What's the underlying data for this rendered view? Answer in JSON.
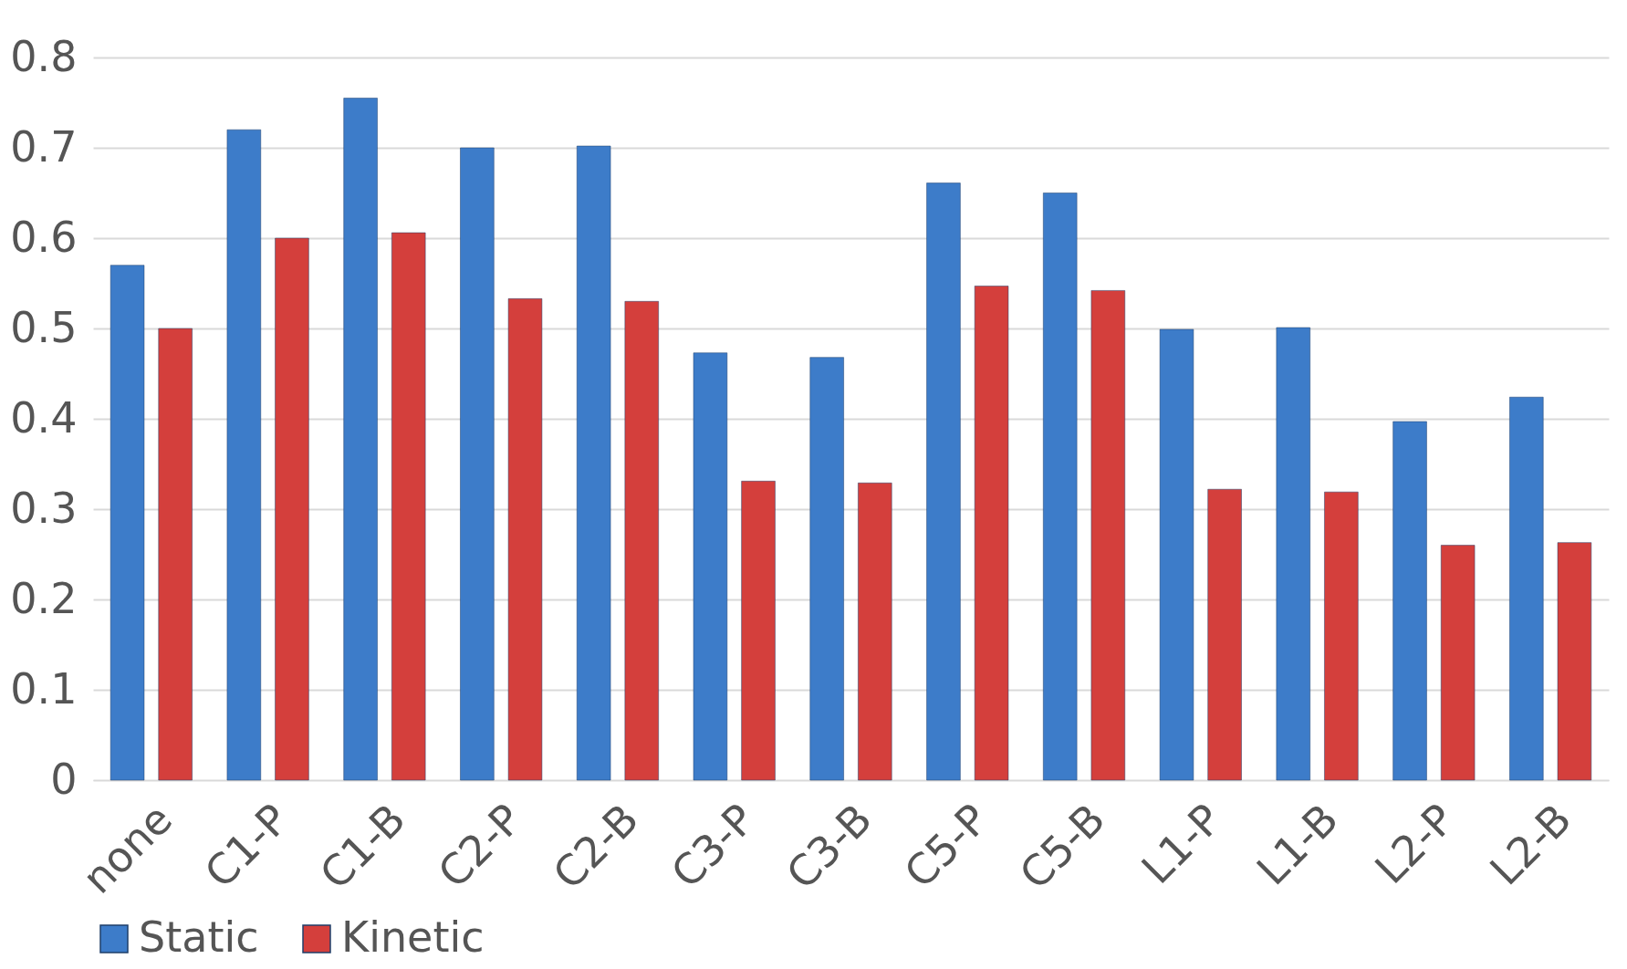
{
  "chart_data": {
    "type": "bar",
    "categories": [
      "none",
      "C1-P",
      "C1-B",
      "C2-P",
      "C2-B",
      "C3-P",
      "C3-B",
      "C5-P",
      "C5-B",
      "L1-P",
      "L1-B",
      "L2-P",
      "L2-B"
    ],
    "series": [
      {
        "name": "Static",
        "color": "#3d7cc9",
        "values": [
          0.57,
          0.72,
          0.755,
          0.7,
          0.702,
          0.473,
          0.468,
          0.661,
          0.65,
          0.499,
          0.501,
          0.397,
          0.424
        ]
      },
      {
        "name": "Kinetic",
        "color": "#d43f3c",
        "values": [
          0.5,
          0.6,
          0.606,
          0.533,
          0.53,
          0.331,
          0.329,
          0.547,
          0.542,
          0.322,
          0.319,
          0.26,
          0.263
        ]
      }
    ],
    "ylim": [
      0,
      0.8
    ],
    "yticks": [
      0,
      0.1,
      0.2,
      0.3,
      0.4,
      0.5,
      0.6,
      0.7,
      0.8
    ],
    "grid": "y",
    "legend": "bottom"
  }
}
